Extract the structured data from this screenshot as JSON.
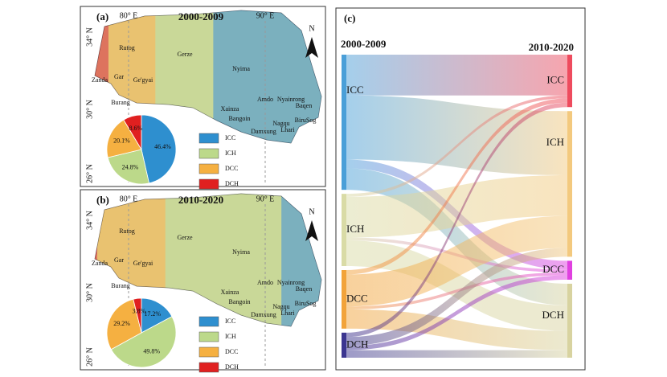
{
  "chart_data": [
    {
      "type": "pie",
      "panel": "(a)",
      "title": "2000-2009",
      "categories": [
        "ICC",
        "ICH",
        "DCC",
        "DCH"
      ],
      "values": [
        46.4,
        24.8,
        20.1,
        8.6
      ],
      "value_labels": [
        "46.4%",
        "24.8%",
        "20.1%",
        "8.6%"
      ],
      "colors": [
        "#2e8fcf",
        "#bcd98a",
        "#f5b041",
        "#e02020"
      ],
      "legend": "right",
      "coordinate_labels": [
        "80° E",
        "90° E",
        "34° N",
        "30° N",
        "26° N"
      ],
      "north_label": "N",
      "map_labels": [
        "Rutog",
        "Zanda",
        "Gar",
        "Ge'gyai",
        "Burang",
        "Gerze",
        "Nyima",
        "Xainza",
        "Amdo",
        "Bangoin",
        "Nyainrong",
        "Baqen",
        "BiruSog",
        "Nagqu",
        "Lhari",
        "Damxung"
      ]
    },
    {
      "type": "pie",
      "panel": "(b)",
      "title": "2010-2020",
      "categories": [
        "ICC",
        "ICH",
        "DCC",
        "DCH"
      ],
      "values": [
        17.2,
        49.8,
        29.2,
        3.8
      ],
      "value_labels": [
        "17.2%",
        "49.8%",
        "29.2%",
        "3.8%"
      ],
      "colors": [
        "#2e8fcf",
        "#bcd98a",
        "#f5b041",
        "#e02020"
      ],
      "legend": "right",
      "coordinate_labels": [
        "80° E",
        "90° E",
        "34° N",
        "30° N",
        "26° N"
      ],
      "north_label": "N",
      "map_labels": [
        "Rutog",
        "Zanda",
        "Gar",
        "Ge'gyai",
        "Burang",
        "Gerze",
        "Nyima",
        "Xainza",
        "Amdo",
        "Bangoin",
        "Nyainrong",
        "Baqen",
        "BiruSog",
        "Nagqu",
        "Lhari",
        "Damxung"
      ]
    },
    {
      "type": "sankey",
      "panel": "(c)",
      "left_title": "2000-2009",
      "right_title": "2010-2020",
      "left_nodes": [
        {
          "name": "ICC",
          "color": "#4a9fd8"
        },
        {
          "name": "ICH",
          "color": "#d9dba6"
        },
        {
          "name": "DCC",
          "color": "#f2a33a"
        },
        {
          "name": "DCH",
          "color": "#3b3590"
        }
      ],
      "right_nodes": [
        {
          "name": "ICC",
          "color": "#ee4b5e"
        },
        {
          "name": "ICH",
          "color": "#f3c97e"
        },
        {
          "name": "DCC",
          "color": "#e040e0"
        },
        {
          "name": "DCH",
          "color": "#d8d3a0"
        }
      ],
      "flows": [
        {
          "source": 0,
          "target": 0,
          "value": 14
        },
        {
          "source": 0,
          "target": 1,
          "value": 22
        },
        {
          "source": 0,
          "target": 2,
          "value": 3
        },
        {
          "source": 0,
          "target": 3,
          "value": 7.4
        },
        {
          "source": 1,
          "target": 0,
          "value": 1
        },
        {
          "source": 1,
          "target": 1,
          "value": 14
        },
        {
          "source": 1,
          "target": 2,
          "value": 1
        },
        {
          "source": 1,
          "target": 3,
          "value": 8.8
        },
        {
          "source": 2,
          "target": 0,
          "value": 1.5
        },
        {
          "source": 2,
          "target": 1,
          "value": 11
        },
        {
          "source": 2,
          "target": 2,
          "value": 1
        },
        {
          "source": 2,
          "target": 3,
          "value": 6.6
        },
        {
          "source": 3,
          "target": 0,
          "value": 1.5
        },
        {
          "source": 3,
          "target": 1,
          "value": 3
        },
        {
          "source": 3,
          "target": 2,
          "value": 1.5
        },
        {
          "source": 3,
          "target": 3,
          "value": 2.6
        }
      ]
    }
  ]
}
